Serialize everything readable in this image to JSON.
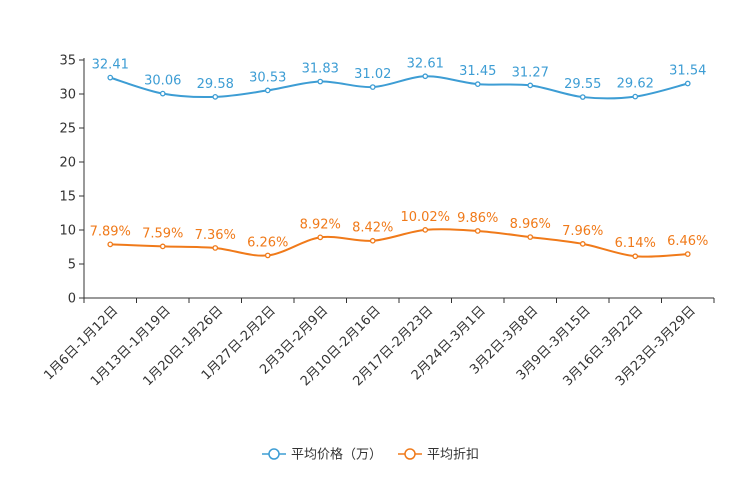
{
  "chart_data": {
    "type": "line",
    "title": "",
    "xlabel": "",
    "ylabel": "",
    "ylim": [
      0,
      35
    ],
    "yticks": [
      0,
      5,
      10,
      15,
      20,
      25,
      30,
      35
    ],
    "categories": [
      "1月6日-1月12日",
      "1月13日-1月19日",
      "1月20日-1月26日",
      "1月27日-2月2日",
      "2月3日-2月9日",
      "2月10日-2月16日",
      "2月17日-2月23日",
      "2月24日-3月1日",
      "3月2日-3月8日",
      "3月9日-3月15日",
      "3月16日-3月22日",
      "3月23日-3月29日"
    ],
    "series": [
      {
        "name": "平均价格（万）",
        "color": "#3d9dd4",
        "values": [
          32.41,
          30.06,
          29.58,
          30.53,
          31.83,
          31.02,
          32.61,
          31.45,
          31.27,
          29.55,
          29.62,
          31.54
        ],
        "labels": [
          "32.41",
          "30.06",
          "29.58",
          "30.53",
          "31.83",
          "31.02",
          "32.61",
          "31.45",
          "31.27",
          "29.55",
          "29.62",
          "31.54"
        ]
      },
      {
        "name": "平均折扣",
        "color": "#f07a1a",
        "values": [
          7.89,
          7.59,
          7.36,
          6.26,
          8.92,
          8.42,
          10.02,
          9.86,
          8.96,
          7.96,
          6.14,
          6.46
        ],
        "labels": [
          "7.89%",
          "7.59%",
          "7.36%",
          "6.26%",
          "8.92%",
          "8.42%",
          "10.02%",
          "9.86%",
          "8.96%",
          "7.96%",
          "6.14%",
          "6.46%"
        ]
      }
    ],
    "legend": "bottom-center",
    "grid": false
  }
}
